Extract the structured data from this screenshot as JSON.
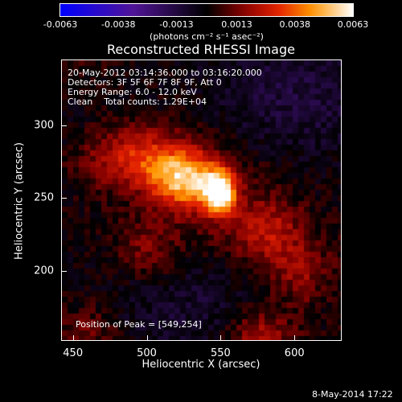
{
  "chart_data": {
    "type": "heatmap",
    "title": "Reconstructed RHESSI Image",
    "xlabel": "Heliocentric X (arcsec)",
    "ylabel": "Heliocentric Y (arcsec)",
    "xlim": [
      442,
      632
    ],
    "ylim": [
      152,
      345
    ],
    "x_ticks": [
      450,
      500,
      550,
      600
    ],
    "y_ticks": [
      200,
      250,
      300
    ],
    "colorbar": {
      "ticks": [
        "-0.0063",
        "-0.0038",
        "-0.0013",
        "0.0013",
        "0.0038",
        "0.0063"
      ],
      "values": [
        -0.0063,
        -0.0038,
        -0.0013,
        0.0013,
        0.0038,
        0.0063
      ],
      "range": [
        -0.0063,
        0.0063
      ],
      "units": "(photons cm⁻² s⁻¹ asec⁻²)"
    },
    "annotations": [
      "20-May-2012 03:14:36.000 to 03:16:20.000",
      "Detectors: 3F 5F 6F 7F 8F 9F, Att 0",
      "Energy Range: 6.0 - 12.0 keV",
      "Clean    Total counts: 1.29E+04"
    ],
    "peak": {
      "label": "Position of Peak = [549,254]",
      "x": 549,
      "y": 254,
      "value": 0.0063
    },
    "emission_regions": [
      {
        "x": 549,
        "y": 254,
        "value": 0.0063
      },
      {
        "x": 530,
        "y": 262,
        "value": 0.0035
      },
      {
        "x": 515,
        "y": 268,
        "value": 0.0022
      },
      {
        "x": 495,
        "y": 280,
        "value": 0.0018
      },
      {
        "x": 470,
        "y": 276,
        "value": 0.0012
      },
      {
        "x": 580,
        "y": 228,
        "value": 0.0016
      },
      {
        "x": 605,
        "y": 200,
        "value": 0.0012
      },
      {
        "x": 575,
        "y": 155,
        "value": 0.0022
      },
      {
        "x": 500,
        "y": 215,
        "value": 0.0014
      },
      {
        "x": 460,
        "y": 160,
        "value": 0.0012
      }
    ]
  },
  "footer": {
    "date": "8-May-2014 17:22"
  }
}
